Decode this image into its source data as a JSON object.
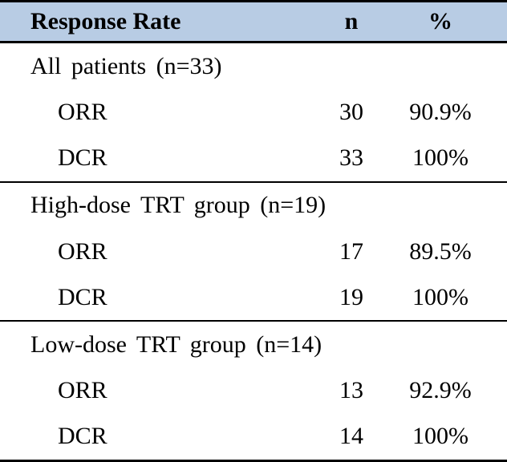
{
  "table": {
    "header": {
      "response_rate": "Response Rate",
      "n": "n",
      "pct": "%"
    },
    "sections": [
      {
        "label": "All patients (n=33)",
        "rows": [
          {
            "label": "ORR",
            "n": "30",
            "pct": "90.9%"
          },
          {
            "label": "DCR",
            "n": "33",
            "pct": "100%"
          }
        ]
      },
      {
        "label": "High-dose TRT group (n=19)",
        "rows": [
          {
            "label": "ORR",
            "n": "17",
            "pct": "89.5%"
          },
          {
            "label": "DCR",
            "n": "19",
            "pct": "100%"
          }
        ]
      },
      {
        "label": "Low-dose TRT group (n=14)",
        "rows": [
          {
            "label": "ORR",
            "n": "13",
            "pct": "92.9%"
          },
          {
            "label": "DCR",
            "n": "14",
            "pct": "100%"
          }
        ]
      }
    ]
  },
  "colors": {
    "header_bg": "#b8cce4",
    "border": "#000000",
    "text": "#000000"
  },
  "chart_data": {
    "type": "table",
    "columns": [
      "Response Rate",
      "n",
      "%"
    ],
    "sections": [
      {
        "group": "All patients (n=33)",
        "group_n": 33,
        "rows": [
          {
            "measure": "ORR",
            "n": 30,
            "percent": 90.9
          },
          {
            "measure": "DCR",
            "n": 33,
            "percent": 100
          }
        ]
      },
      {
        "group": "High-dose TRT group (n=19)",
        "group_n": 19,
        "rows": [
          {
            "measure": "ORR",
            "n": 17,
            "percent": 89.5
          },
          {
            "measure": "DCR",
            "n": 19,
            "percent": 100
          }
        ]
      },
      {
        "group": "Low-dose TRT group (n=14)",
        "group_n": 14,
        "rows": [
          {
            "measure": "ORR",
            "n": 13,
            "percent": 92.9
          },
          {
            "measure": "DCR",
            "n": 14,
            "percent": 100
          }
        ]
      }
    ],
    "layout": {
      "header_fill": "#b8cce4",
      "rules": "horizontal only",
      "grid": false
    }
  }
}
